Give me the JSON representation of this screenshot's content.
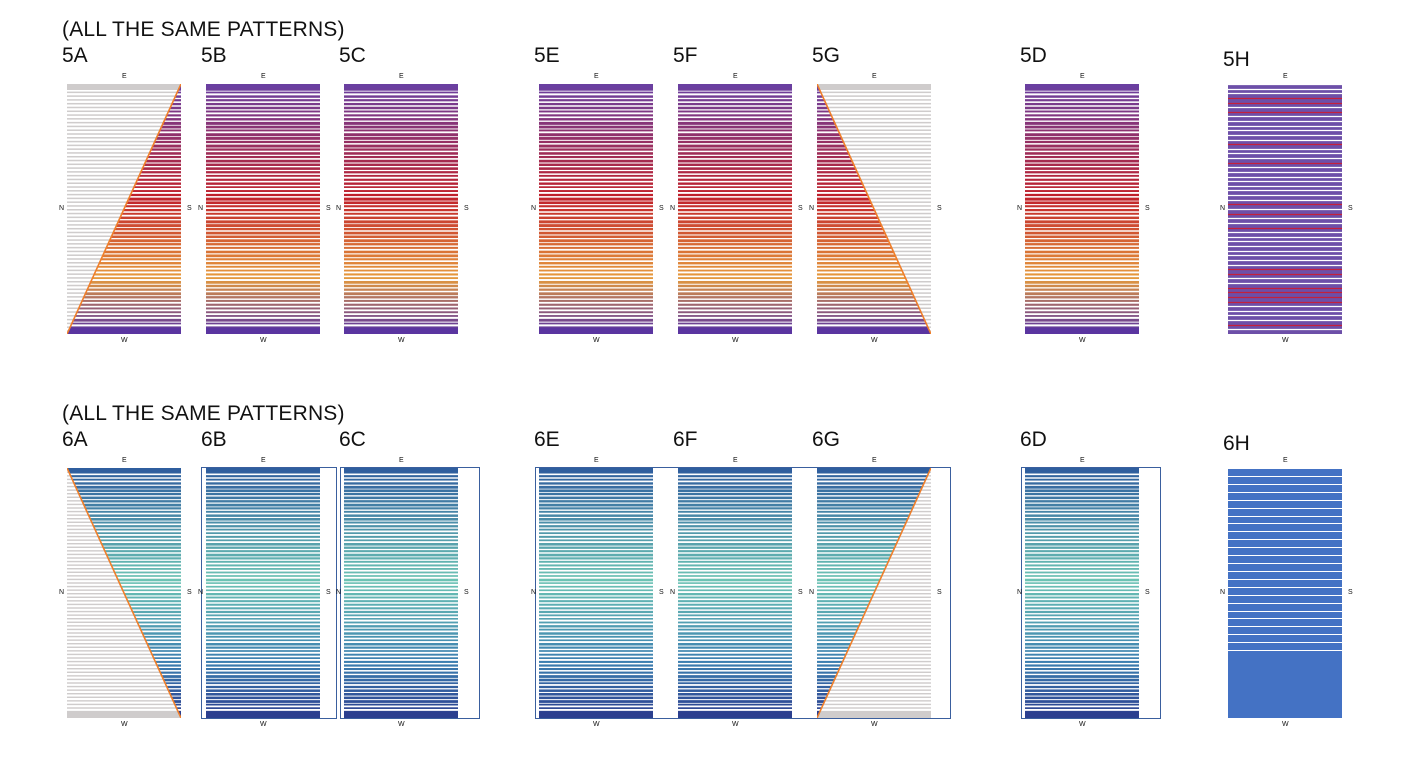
{
  "rows": [
    {
      "heading": "(ALL THE SAME PATTERNS)",
      "scheme": "warm",
      "panels": [
        {
          "label": "5A",
          "mode": "stripes",
          "overlay": "grey-left",
          "stripes": 66
        },
        {
          "label": "5B",
          "mode": "stripes",
          "overlay": "none",
          "stripes": 66
        },
        {
          "label": "5C",
          "mode": "stripes",
          "overlay": "none",
          "stripes": 66
        },
        {
          "label": "5E",
          "mode": "stripes",
          "overlay": "none",
          "stripes": 66
        },
        {
          "label": "5F",
          "mode": "stripes",
          "overlay": "none",
          "stripes": 66
        },
        {
          "label": "5G",
          "mode": "stripes",
          "overlay": "grey-right",
          "stripes": 66
        },
        {
          "label": "5D",
          "mode": "stripes",
          "overlay": "none",
          "stripes": 66
        },
        {
          "label": "5H",
          "mode": "solid",
          "overlay": "none",
          "stripes": 54
        }
      ],
      "colors": {
        "top": "#6a3fa0",
        "mid": "#c0202a",
        "low": "#e69a3c",
        "bottom": "#5a35a0",
        "grey": "#cfcccc",
        "edge": "#f07f2a",
        "solid": "#6d4fa8",
        "solid_line": "#c4203c"
      }
    },
    {
      "heading": "(ALL THE SAME PATTERNS)",
      "scheme": "cool",
      "panels": [
        {
          "label": "6A",
          "mode": "stripes",
          "overlay": "grey-left-down",
          "stripes": 70
        },
        {
          "label": "6B",
          "mode": "stripes",
          "overlay": "none",
          "stripes": 70
        },
        {
          "label": "6C",
          "mode": "stripes",
          "overlay": "none",
          "stripes": 70
        },
        {
          "label": "6E",
          "mode": "stripes",
          "overlay": "none",
          "stripes": 70
        },
        {
          "label": "6F",
          "mode": "stripes",
          "overlay": "none",
          "stripes": 70
        },
        {
          "label": "6G",
          "mode": "stripes",
          "overlay": "grey-right-up",
          "stripes": 70
        },
        {
          "label": "6D",
          "mode": "stripes",
          "overlay": "none",
          "stripes": 70
        },
        {
          "label": "6H",
          "mode": "solid",
          "overlay": "none",
          "stripes": 24
        }
      ],
      "colors": {
        "top": "#2f5e9e",
        "mid": "#6cc3b4",
        "low": "#3c7fb0",
        "bottom": "#2b3f8f",
        "grey": "#cfcccc",
        "edge": "#f07f2a",
        "solid": "#4472c4",
        "solid_line": "#ffffff"
      }
    }
  ],
  "compass": {
    "north": "N",
    "east": "E",
    "south": "S",
    "west": "W"
  }
}
